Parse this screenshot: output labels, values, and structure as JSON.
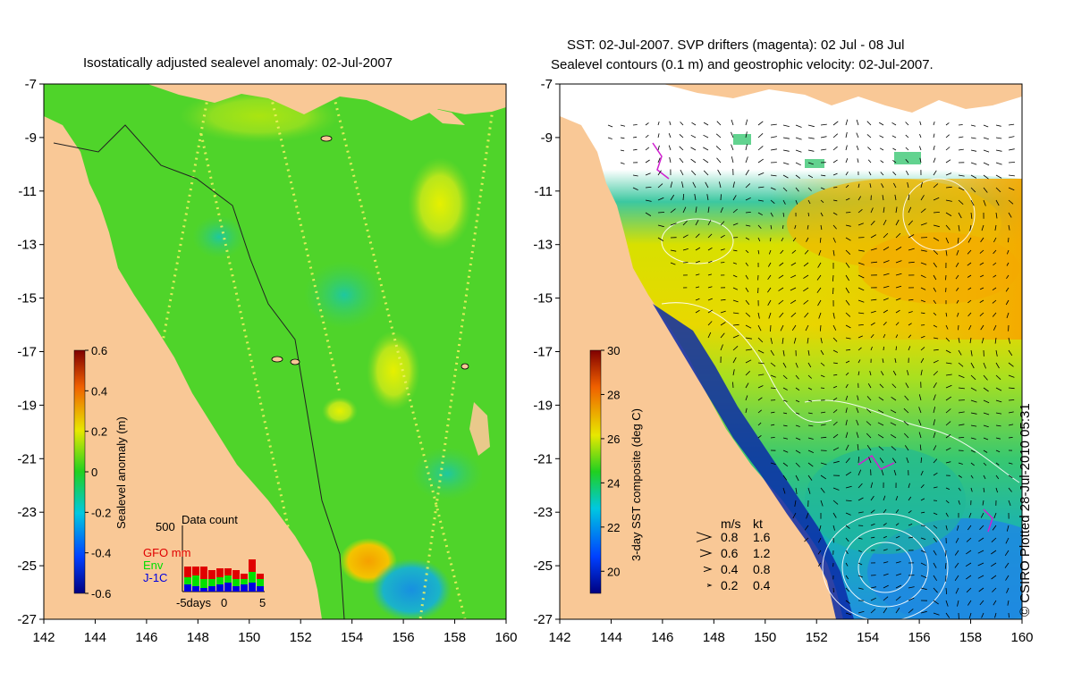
{
  "left_panel": {
    "title": "Isostatically adjusted sealevel anomaly: 02-Jul-2007",
    "colorbar": {
      "label": "Sealevel anomaly (m)",
      "ticks": [
        "0.6",
        "0.4",
        "0.2",
        "0",
        "-0.2",
        "-0.4",
        "-0.6"
      ]
    },
    "data_count": {
      "title": "Data count",
      "ymax_label": "500",
      "legend": [
        {
          "label": "GFO mm",
          "color": "#e00000"
        },
        {
          "label": "Env",
          "color": "#00e000"
        },
        {
          "label": "J-1C",
          "color": "#0000e0"
        }
      ],
      "x_labels": [
        "-5days",
        "0",
        "5"
      ]
    }
  },
  "right_panel": {
    "title_line1": "SST: 02-Jul-2007. SVP drifters (magenta): 02 Jul - 08 Jul",
    "title_line2": "Sealevel contours (0.1 m) and geostrophic velocity: 02-Jul-2007.",
    "colorbar": {
      "label": "3-day SST composite (deg C)",
      "ticks": [
        "30",
        "28",
        "26",
        "24",
        "22",
        "20"
      ]
    },
    "velocity_legend": {
      "header_ms": "m/s",
      "header_kt": "kt",
      "rows": [
        {
          "ms": "0.8",
          "kt": "1.6"
        },
        {
          "ms": "0.6",
          "kt": "1.2"
        },
        {
          "ms": "0.4",
          "kt": "0.8"
        },
        {
          "ms": "0.2",
          "kt": "0.4"
        }
      ]
    }
  },
  "axes": {
    "y_ticks": [
      "-7",
      "-9",
      "-11",
      "-13",
      "-15",
      "-17",
      "-19",
      "-21",
      "-23",
      "-25",
      "-27"
    ],
    "x_ticks": [
      "142",
      "144",
      "146",
      "148",
      "150",
      "152",
      "154",
      "156",
      "158",
      "160"
    ]
  },
  "copyright": "© CSIRO Plotted 28-Jul-2010 05:31",
  "colors": {
    "land": "#f9c896",
    "ocean_sla": "#4fd42a",
    "sst_warm": "#f5b400",
    "sst_cool": "#0a2aa8"
  }
}
